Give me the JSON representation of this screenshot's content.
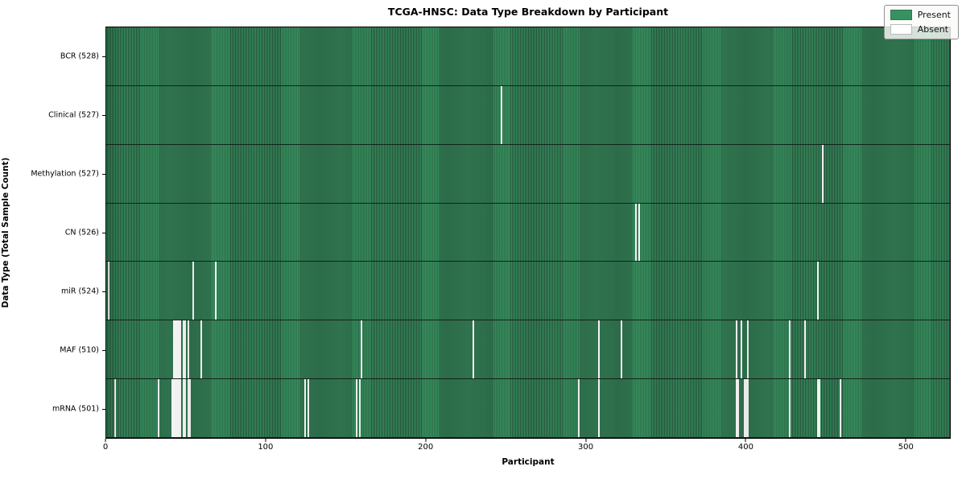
{
  "title": "TCGA-HNSC: Data Type Breakdown by Participant",
  "xlabel": "Participant",
  "ylabel": "Data Type (Total Sample Count)",
  "legend": {
    "present_label": "Present",
    "absent_label": "Absent"
  },
  "colors": {
    "present": "#37925f",
    "present_edge": "#27523c",
    "absent": "#f6f6f6"
  },
  "chart_data": {
    "type": "heatmap",
    "x_axis_range": [
      0,
      528
    ],
    "n_participants": 528,
    "x_ticks": [
      0,
      100,
      200,
      300,
      400,
      500
    ],
    "rows": [
      {
        "label": "BCR (528)",
        "data_type": "BCR",
        "present_count": 528,
        "absent_participants": []
      },
      {
        "label": "Clinical (527)",
        "data_type": "Clinical",
        "present_count": 527,
        "absent_participants": [
          247
        ]
      },
      {
        "label": "Methylation (527)",
        "data_type": "Methylation",
        "present_count": 527,
        "absent_participants": [
          448
        ]
      },
      {
        "label": "CN (526)",
        "data_type": "CN",
        "present_count": 526,
        "absent_participants": [
          331,
          333
        ]
      },
      {
        "label": "miR (524)",
        "data_type": "miR",
        "present_count": 524,
        "absent_participants": [
          1,
          54,
          68,
          445
        ]
      },
      {
        "label": "MAF (510)",
        "data_type": "MAF",
        "present_count": 510,
        "absent_participants": [
          42,
          43,
          44,
          45,
          46,
          48,
          49,
          51,
          59,
          159,
          229,
          308,
          322,
          394,
          397,
          401,
          427,
          437
        ]
      },
      {
        "label": "mRNA (501)",
        "data_type": "mRNA",
        "present_count": 501,
        "absent_participants": [
          5,
          32,
          41,
          42,
          43,
          44,
          45,
          46,
          48,
          49,
          51,
          52,
          124,
          126,
          156,
          158,
          295,
          308,
          394,
          395,
          399,
          400,
          401,
          427,
          445,
          446,
          459
        ]
      }
    ]
  }
}
